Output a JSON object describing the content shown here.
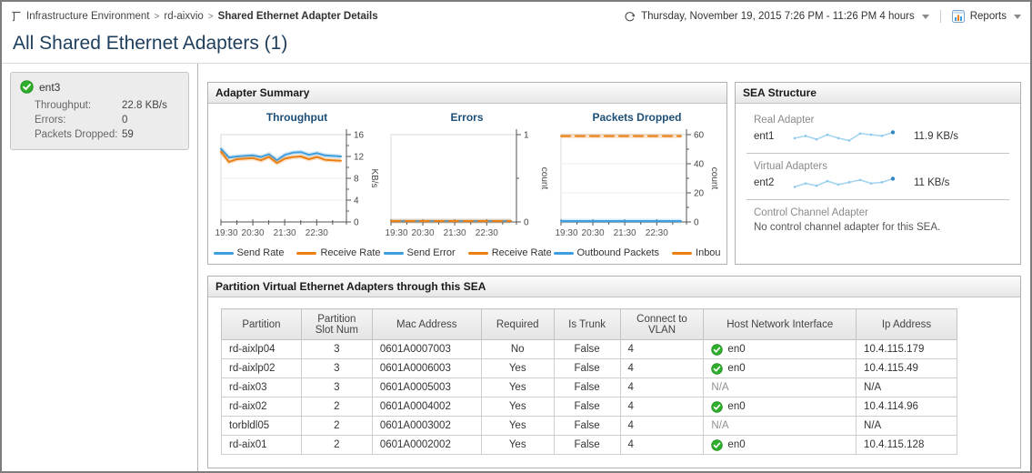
{
  "breadcrumb": {
    "items": [
      "Infrastructure Environment",
      "rd-aixvio",
      "Shared Ethernet Adapter Details"
    ]
  },
  "timebar": {
    "range": "Thursday, November 19, 2015 7:26 PM - 11:26 PM 4 hours",
    "reports_label": "Reports"
  },
  "page_title": "All Shared Ethernet Adapters (1)",
  "sidebar_card": {
    "name": "ent3",
    "metrics": [
      {
        "label": "Throughput:",
        "value": "22.8 KB/s"
      },
      {
        "label": "Errors:",
        "value": "0"
      },
      {
        "label": "Packets Dropped:",
        "value": "59"
      }
    ]
  },
  "adapter_summary_title": "Adapter Summary",
  "sea_structure": {
    "title": "SEA Structure",
    "sections": [
      {
        "label": "Real Adapter",
        "name": "ent1",
        "value": "11.9 KB/s",
        "spark": [
          11.5,
          11.7,
          11.4,
          11.8,
          11.5,
          11.3,
          11.9,
          11.8,
          11.7,
          12.0
        ]
      },
      {
        "label": "Virtual Adapters",
        "name": "ent2",
        "value": "11 KB/s",
        "spark": [
          11.2,
          11.5,
          11.3,
          11.7,
          11.4,
          11.6,
          11.8,
          11.5,
          11.6,
          11.9
        ]
      },
      {
        "label": "Control Channel Adapter",
        "note": "No control channel adapter for this SEA."
      }
    ]
  },
  "partition_panel": {
    "title": "Partition Virtual Ethernet Adapters through this SEA",
    "headers": [
      "Partition",
      "Partition Slot Num",
      "Mac Address",
      "Required",
      "Is Trunk",
      "Connect to VLAN",
      "Host Network Interface",
      "Ip Address"
    ],
    "rows": [
      {
        "partition": "rd-aixlp04",
        "slot": "3",
        "mac": "0601A0007003",
        "required": "No",
        "trunk": "False",
        "vlan": "4",
        "host": {
          "icon": true,
          "label": "en0"
        },
        "ip": "10.4.115.179"
      },
      {
        "partition": "rd-aixlp02",
        "slot": "3",
        "mac": "0601A0006003",
        "required": "Yes",
        "trunk": "False",
        "vlan": "4",
        "host": {
          "icon": true,
          "label": "en0"
        },
        "ip": "10.4.115.49"
      },
      {
        "partition": "rd-aix03",
        "slot": "3",
        "mac": "0601A0005003",
        "required": "Yes",
        "trunk": "False",
        "vlan": "4",
        "host": {
          "icon": false,
          "label": "N/A"
        },
        "ip": "N/A"
      },
      {
        "partition": "rd-aix02",
        "slot": "2",
        "mac": "0601A0004002",
        "required": "Yes",
        "trunk": "False",
        "vlan": "4",
        "host": {
          "icon": true,
          "label": "en0"
        },
        "ip": "10.4.114.96"
      },
      {
        "partition": "torbldl05",
        "slot": "2",
        "mac": "0601A0003002",
        "required": "Yes",
        "trunk": "False",
        "vlan": "4",
        "host": {
          "icon": false,
          "label": "N/A"
        },
        "ip": "N/A"
      },
      {
        "partition": "rd-aix01",
        "slot": "2",
        "mac": "0601A0002002",
        "required": "Yes",
        "trunk": "False",
        "vlan": "4",
        "host": {
          "icon": true,
          "label": "en0"
        },
        "ip": "10.4.115.128"
      }
    ]
  },
  "chart_data": [
    {
      "type": "line",
      "title": "Throughput",
      "ylabel": "KB/s",
      "ylim": [
        0,
        16
      ],
      "yticks": [
        0,
        4,
        8,
        12,
        16
      ],
      "yminor": [
        2,
        6,
        10,
        14
      ],
      "x_tick_labels": [
        "19:30",
        "20:30",
        "21:30",
        "22:30"
      ],
      "x": [
        "19:30",
        "19:46",
        "20:01",
        "20:17",
        "20:33",
        "20:48",
        "21:04",
        "21:20",
        "21:35",
        "21:51",
        "22:07",
        "22:22",
        "22:38",
        "22:54",
        "23:09",
        "23:25"
      ],
      "legend_position": "bottom",
      "grid": true,
      "series": [
        {
          "name": "Send Rate",
          "color": "#3f9edd",
          "dashed": false,
          "values": [
            13.4,
            11.8,
            12.0,
            12.1,
            12.2,
            11.9,
            12.4,
            11.3,
            12.3,
            12.7,
            12.8,
            12.3,
            12.6,
            12.2,
            12.1,
            12.0
          ]
        },
        {
          "name": "Receive Rate",
          "color": "#ec7f10",
          "dashed": false,
          "values": [
            12.9,
            11.0,
            11.5,
            11.6,
            11.7,
            11.3,
            11.9,
            10.8,
            11.6,
            11.9,
            12.0,
            11.5,
            11.9,
            11.4,
            11.3,
            11.2
          ]
        }
      ]
    },
    {
      "type": "line",
      "title": "Errors",
      "ylabel": "count",
      "ylim": [
        0,
        1
      ],
      "yticks": [
        0,
        1
      ],
      "yminor": [
        0.5
      ],
      "x_tick_labels": [
        "19:30",
        "20:30",
        "21:30",
        "22:30"
      ],
      "x": [
        "19:30",
        "19:46",
        "20:01",
        "20:17",
        "20:33",
        "20:48",
        "21:04",
        "21:20",
        "21:35",
        "21:51",
        "22:07",
        "22:22",
        "22:38",
        "22:54",
        "23:09",
        "23:25"
      ],
      "legend_position": "bottom",
      "grid": true,
      "series": [
        {
          "name": "Send Error",
          "color": "#3f9edd",
          "dashed": false,
          "values": [
            0,
            0,
            0,
            0,
            0,
            0,
            0,
            0,
            0,
            0,
            0,
            0,
            0,
            0,
            0,
            0
          ]
        },
        {
          "name": "Receive Rate",
          "color": "#ec7f10",
          "dashed": true,
          "values": [
            0,
            0,
            0,
            0,
            0,
            0,
            0,
            0,
            0,
            0,
            0,
            0,
            0,
            0,
            0,
            0
          ]
        }
      ]
    },
    {
      "type": "line",
      "title": "Packets Dropped",
      "ylabel": "count",
      "ylim": [
        0,
        60
      ],
      "yticks": [
        0,
        20,
        40,
        60
      ],
      "yminor": [
        10,
        30,
        50
      ],
      "x_tick_labels": [
        "19:30",
        "20:30",
        "21:30",
        "22:30"
      ],
      "x": [
        "19:30",
        "19:46",
        "20:01",
        "20:17",
        "20:33",
        "20:48",
        "21:04",
        "21:20",
        "21:35",
        "21:51",
        "22:07",
        "22:22",
        "22:38",
        "22:54",
        "23:09",
        "23:25"
      ],
      "legend_position": "bottom",
      "grid": true,
      "series": [
        {
          "name": "Outbound Packets",
          "color": "#3f9edd",
          "dashed": false,
          "values": [
            0,
            0,
            0,
            0,
            0,
            0,
            0,
            0,
            0,
            0,
            0,
            0,
            0,
            0,
            0,
            0
          ]
        },
        {
          "name": "Inbound Pack",
          "color": "#ec7f10",
          "dashed": true,
          "values": [
            59,
            59,
            59,
            59,
            59,
            59,
            59,
            59,
            59,
            59,
            59,
            59,
            59,
            59,
            59,
            59
          ]
        }
      ]
    }
  ],
  "colors": {
    "blue": "#3f9edd",
    "orange": "#ec7f10",
    "green": "#2fae2b",
    "title_navy": "#1d3e5c",
    "chart_title": "#1d4f76",
    "spark_line": "#a6d5f0",
    "spark_dot_end": "#2f88c4"
  }
}
